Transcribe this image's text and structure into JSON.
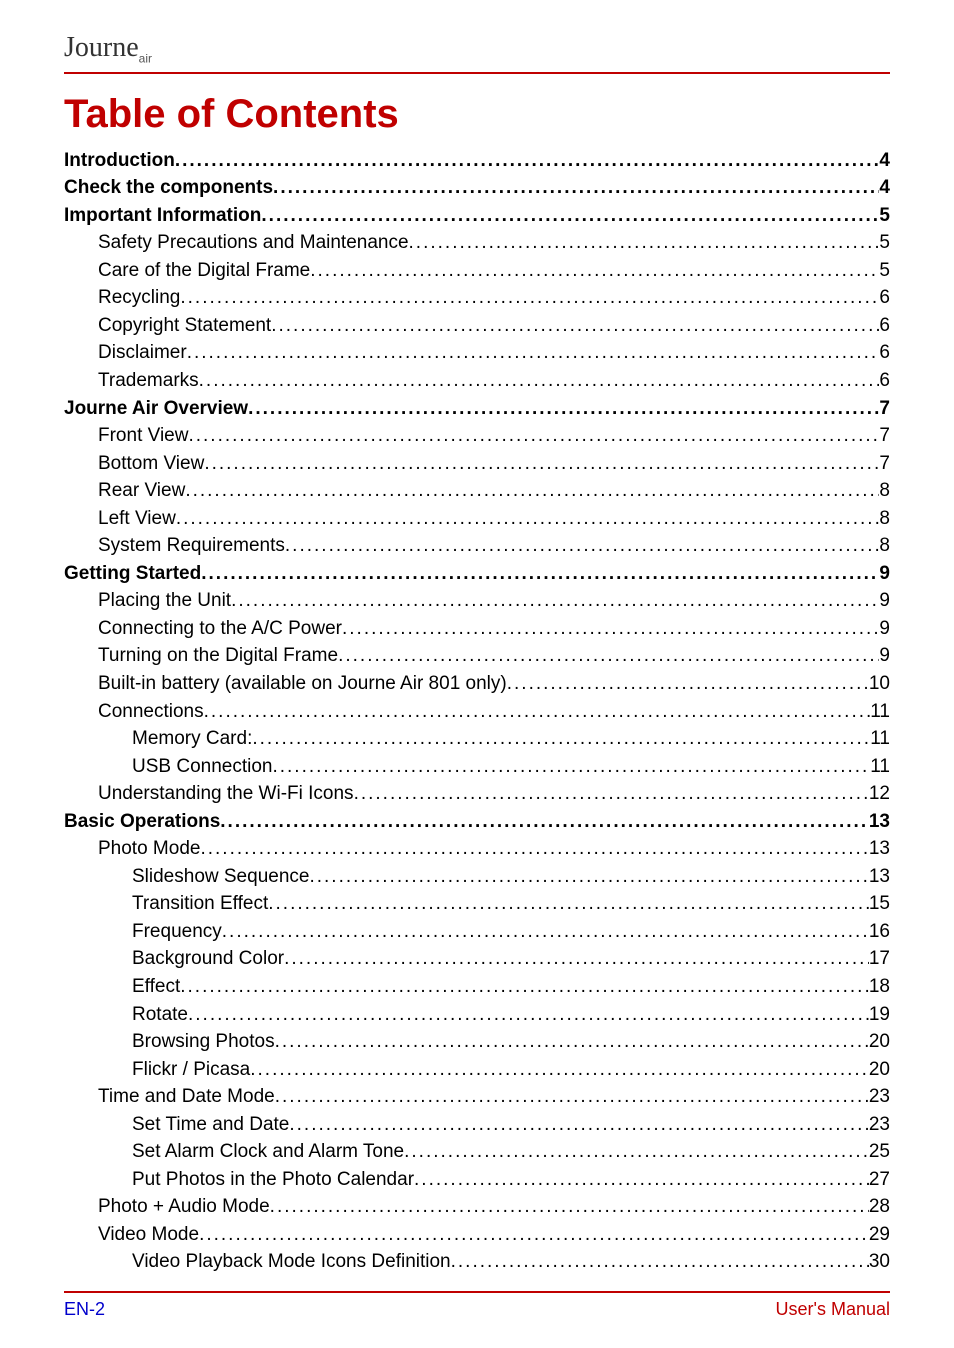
{
  "logo": {
    "main": "Journe",
    "sub": "air"
  },
  "title": "Table of Contents",
  "colors": {
    "accent": "#c00000",
    "link": "#0000cc",
    "text": "#000000",
    "background": "#ffffff"
  },
  "typography": {
    "title_fontsize": 40,
    "body_fontsize": 19,
    "footer_fontsize": 18
  },
  "toc": [
    {
      "level": 0,
      "label": "Introduction",
      "page": "4"
    },
    {
      "level": 0,
      "label": "Check the components",
      "page": "4"
    },
    {
      "level": 0,
      "label": "Important Information",
      "page": "5"
    },
    {
      "level": 1,
      "label": "Safety Precautions and Maintenance",
      "page": "5"
    },
    {
      "level": 1,
      "label": "Care of the Digital Frame",
      "page": "5"
    },
    {
      "level": 1,
      "label": "Recycling",
      "page": "6"
    },
    {
      "level": 1,
      "label": "Copyright Statement",
      "page": "6"
    },
    {
      "level": 1,
      "label": "Disclaimer",
      "page": "6"
    },
    {
      "level": 1,
      "label": "Trademarks",
      "page": "6"
    },
    {
      "level": 0,
      "label": "Journe Air Overview",
      "page": "7"
    },
    {
      "level": 1,
      "label": "Front View",
      "page": "7"
    },
    {
      "level": 1,
      "label": "Bottom View",
      "page": "7"
    },
    {
      "level": 1,
      "label": "Rear View",
      "page": "8"
    },
    {
      "level": 1,
      "label": "Left View",
      "page": "8"
    },
    {
      "level": 1,
      "label": "System Requirements",
      "page": "8"
    },
    {
      "level": 0,
      "label": "Getting Started",
      "page": "9"
    },
    {
      "level": 1,
      "label": "Placing the Unit",
      "page": "9"
    },
    {
      "level": 1,
      "label": "Connecting to the A/C Power",
      "page": "9"
    },
    {
      "level": 1,
      "label": "Turning on the Digital Frame",
      "page": "9"
    },
    {
      "level": 1,
      "label": "Built-in battery (available on Journe Air 801 only)",
      "page": "10"
    },
    {
      "level": 1,
      "label": "Connections",
      "page": "11"
    },
    {
      "level": 2,
      "label": "Memory Card:",
      "page": "11"
    },
    {
      "level": 2,
      "label": "USB Connection",
      "page": "11"
    },
    {
      "level": 1,
      "label": "Understanding the Wi-Fi Icons",
      "page": "12"
    },
    {
      "level": 0,
      "label": "Basic Operations",
      "page": "13"
    },
    {
      "level": 1,
      "label": "Photo Mode",
      "page": "13"
    },
    {
      "level": 2,
      "label": "Slideshow Sequence",
      "page": "13"
    },
    {
      "level": 2,
      "label": "Transition Effect",
      "page": "15"
    },
    {
      "level": 2,
      "label": "Frequency",
      "page": "16"
    },
    {
      "level": 2,
      "label": "Background Color",
      "page": "17"
    },
    {
      "level": 2,
      "label": "Effect",
      "page": "18"
    },
    {
      "level": 2,
      "label": "Rotate",
      "page": "19"
    },
    {
      "level": 2,
      "label": "Browsing Photos",
      "page": "20"
    },
    {
      "level": 2,
      "label": "Flickr / Picasa",
      "page": "20"
    },
    {
      "level": 1,
      "label": "Time and Date Mode",
      "page": "23"
    },
    {
      "level": 2,
      "label": "Set Time and Date",
      "page": "23"
    },
    {
      "level": 2,
      "label": "Set Alarm Clock and Alarm Tone",
      "page": "25"
    },
    {
      "level": 2,
      "label": "Put Photos in the Photo Calendar",
      "page": "27"
    },
    {
      "level": 1,
      "label": "Photo + Audio Mode",
      "page": "28"
    },
    {
      "level": 1,
      "label": "Video Mode",
      "page": "29"
    },
    {
      "level": 2,
      "label": "Video Playback Mode Icons Definition",
      "page": "30"
    }
  ],
  "footer": {
    "left": "EN-2",
    "right": "User's Manual"
  }
}
